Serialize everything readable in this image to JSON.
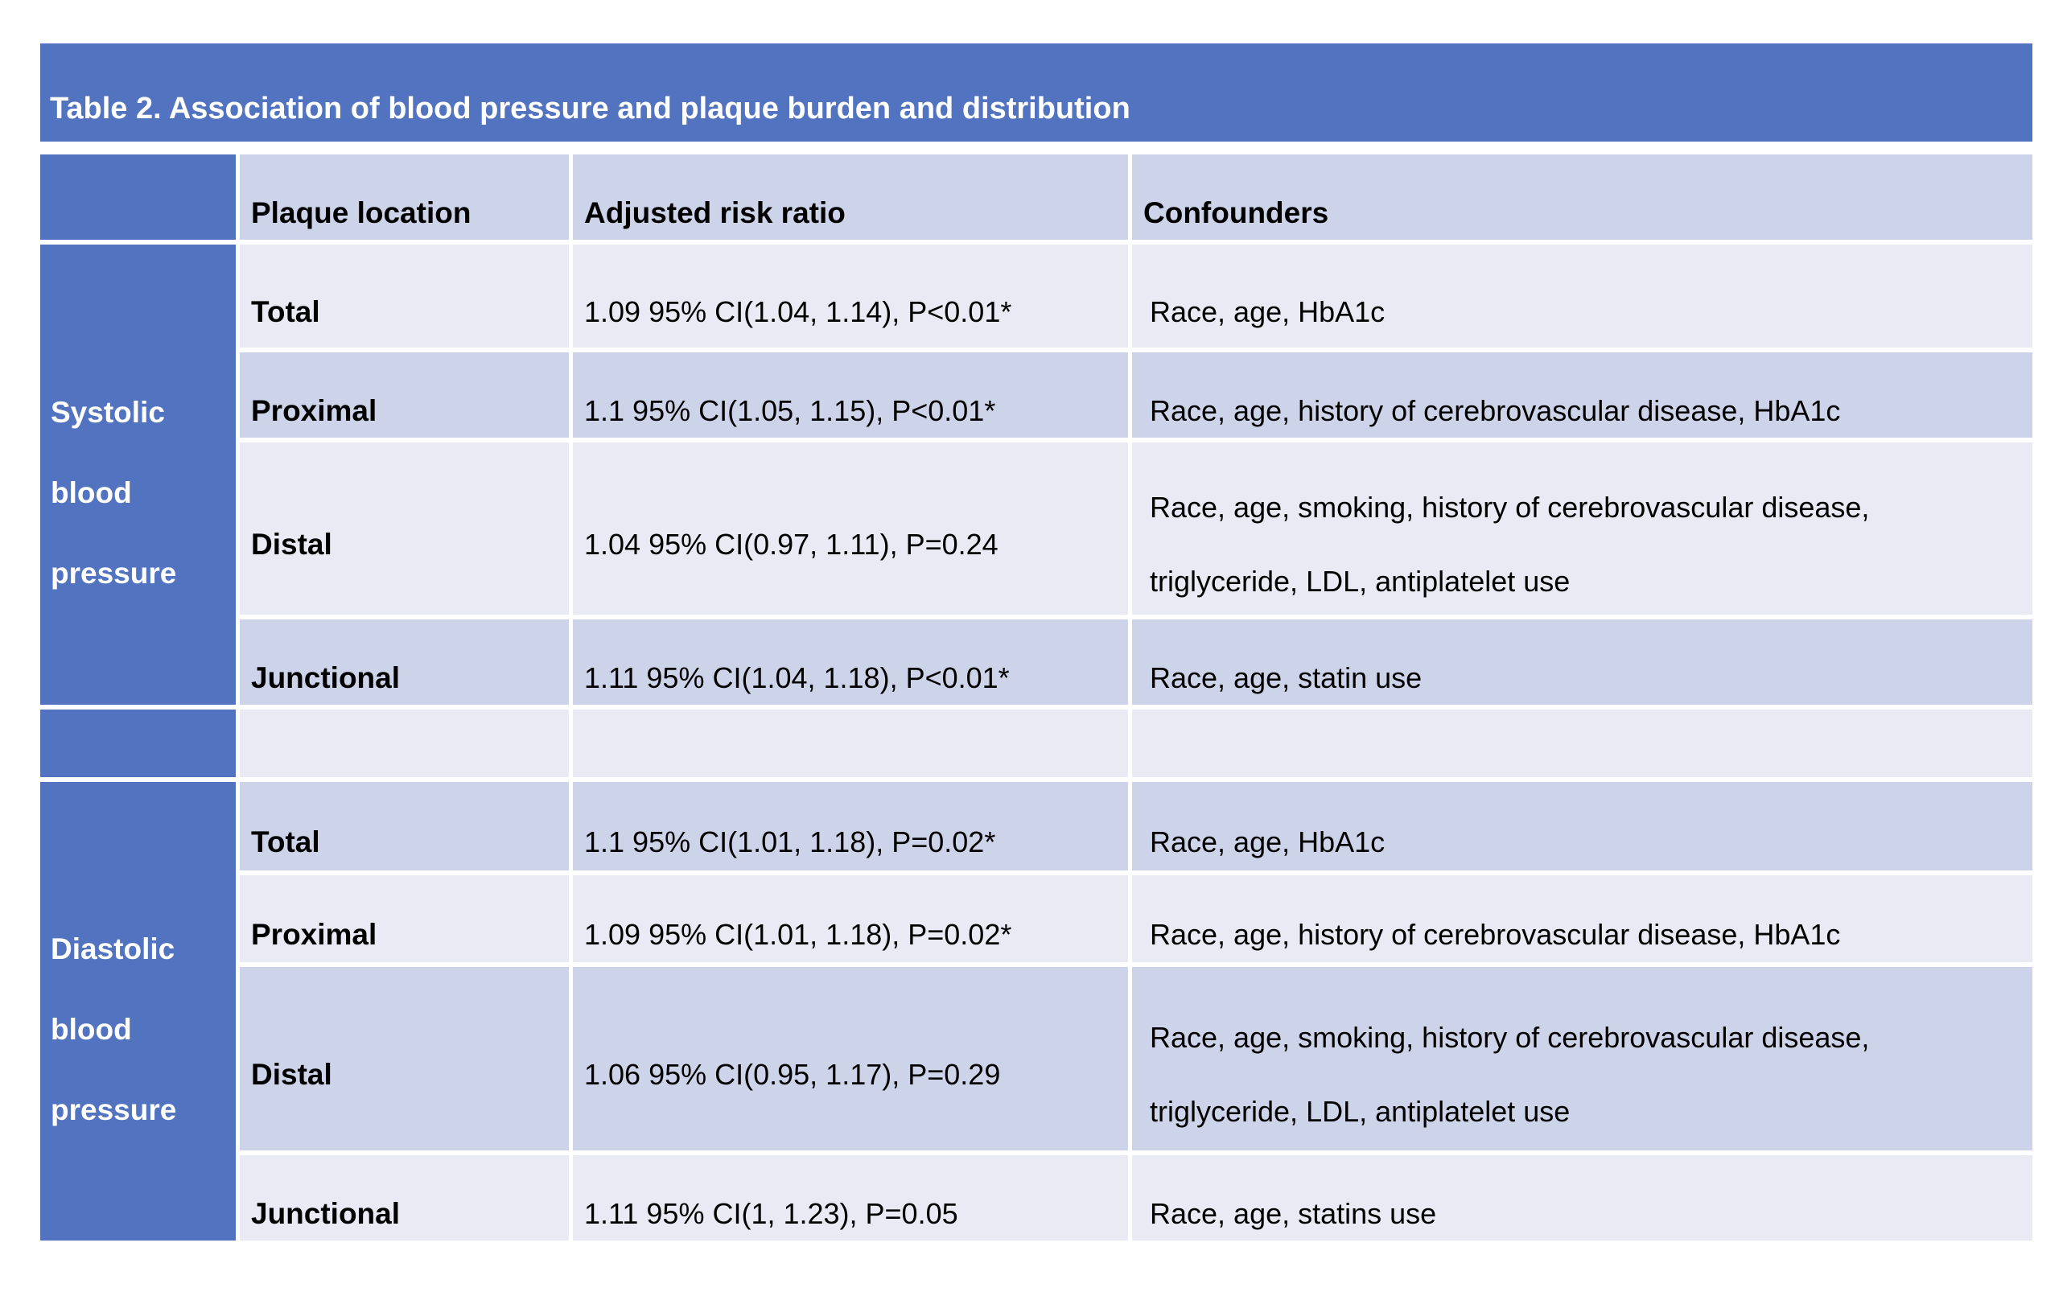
{
  "colors": {
    "accent_blue": "#5273BF",
    "band_dark": "#CDD3E8",
    "band_light": "#E9EAF4",
    "title_text": "#FFFFFF",
    "body_text": "#000000",
    "page_background": "#FFFFFF"
  },
  "table": {
    "title": "Table 2. Association of blood pressure and plaque burden and distribution",
    "headers": {
      "plaque_location": "Plaque location",
      "adjusted_risk_ratio": "Adjusted risk ratio",
      "confounders": "Confounders"
    },
    "groups": [
      {
        "label": "Systolic\nblood\npressure",
        "rows": [
          {
            "location": "Total",
            "risk_ratio": "1.09 95% CI(1.04, 1.14), P<0.01*",
            "confounders": "Race, age, HbA1c"
          },
          {
            "location": "Proximal",
            "risk_ratio": "1.1 95% CI(1.05, 1.15), P<0.01*",
            "confounders": "Race, age, history of cerebrovascular disease, HbA1c"
          },
          {
            "location": "Distal",
            "risk_ratio": "1.04 95% CI(0.97, 1.11), P=0.24",
            "confounders": "Race, age, smoking, history of cerebrovascular disease,\ntriglyceride, LDL, antiplatelet use"
          },
          {
            "location": "Junctional",
            "risk_ratio": "1.11 95% CI(1.04, 1.18), P<0.01*",
            "confounders": "Race, age, statin use"
          }
        ]
      },
      {
        "label": "Diastolic\nblood\npressure",
        "rows": [
          {
            "location": "Total",
            "risk_ratio": "1.1 95% CI(1.01, 1.18), P=0.02*",
            "confounders": "Race, age, HbA1c"
          },
          {
            "location": "Proximal",
            "risk_ratio": "1.09 95% CI(1.01, 1.18), P=0.02*",
            "confounders": "Race, age, history of cerebrovascular disease, HbA1c"
          },
          {
            "location": "Distal",
            "risk_ratio": "1.06 95% CI(0.95, 1.17), P=0.29",
            "confounders": "Race, age, smoking, history of cerebrovascular disease,\ntriglyceride, LDL, antiplatelet use"
          },
          {
            "location": "Junctional",
            "risk_ratio": "1.11 95% CI(1, 1.23), P=0.05",
            "confounders": "Race, age, statins use"
          }
        ]
      }
    ]
  }
}
